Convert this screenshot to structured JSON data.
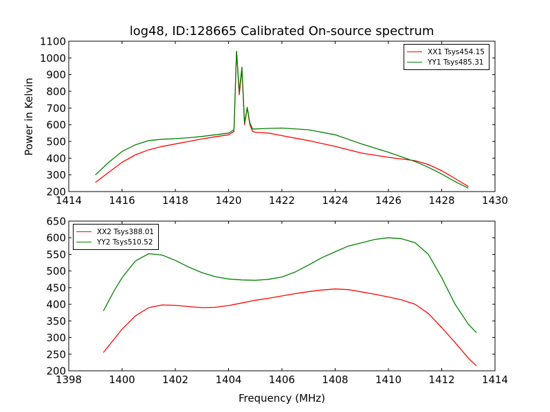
{
  "chart_data": [
    {
      "type": "line",
      "title": "log48, ID:128665 Calibrated On-source spectrum",
      "xlabel": "",
      "ylabel": "Power in Kelvin",
      "xlim": [
        1414,
        1430
      ],
      "ylim": [
        200,
        1100
      ],
      "xticks": [
        "1414",
        "1416",
        "1418",
        "1420",
        "1422",
        "1424",
        "1426",
        "1428",
        "1430"
      ],
      "yticks": [
        "200",
        "300",
        "400",
        "500",
        "600",
        "700",
        "800",
        "900",
        "1000",
        "1100"
      ],
      "legend_position": "top-right",
      "series": [
        {
          "name": "XX1 Tsys454.15",
          "color": "#ff0000",
          "x": [
            1415,
            1415.5,
            1416,
            1416.5,
            1417,
            1417.5,
            1418,
            1418.5,
            1419,
            1419.5,
            1420,
            1420.2,
            1420.3,
            1420.4,
            1420.5,
            1420.6,
            1420.7,
            1420.8,
            1420.9,
            1421.0,
            1421.5,
            1422,
            1423,
            1424,
            1425,
            1426,
            1427,
            1427.5,
            1428,
            1428.5,
            1429
          ],
          "y": [
            255,
            315,
            375,
            420,
            450,
            470,
            485,
            500,
            515,
            528,
            540,
            560,
            1040,
            780,
            930,
            600,
            700,
            600,
            560,
            555,
            550,
            535,
            505,
            470,
            430,
            405,
            385,
            362,
            325,
            278,
            230
          ]
        },
        {
          "name": "YY1 Tsys485.31",
          "color": "#008000",
          "x": [
            1415,
            1415.5,
            1416,
            1416.5,
            1417,
            1417.5,
            1418,
            1418.5,
            1419,
            1419.5,
            1420,
            1420.2,
            1420.3,
            1420.4,
            1420.5,
            1420.6,
            1420.7,
            1420.8,
            1420.9,
            1421.0,
            1421.5,
            1422,
            1423,
            1424,
            1425,
            1426,
            1427,
            1427.5,
            1428,
            1428.5,
            1429
          ],
          "y": [
            300,
            375,
            440,
            480,
            505,
            513,
            517,
            522,
            530,
            540,
            550,
            570,
            1040,
            800,
            945,
            610,
            705,
            610,
            575,
            575,
            578,
            580,
            570,
            540,
            485,
            435,
            380,
            345,
            305,
            260,
            220
          ]
        }
      ]
    },
    {
      "type": "line",
      "title": "",
      "xlabel": "Frequency (MHz)",
      "ylabel": "",
      "xlim": [
        1398,
        1414
      ],
      "ylim": [
        200,
        650
      ],
      "xticks": [
        "1398",
        "1400",
        "1402",
        "1404",
        "1406",
        "1408",
        "1410",
        "1412",
        "1414"
      ],
      "yticks": [
        "200",
        "250",
        "300",
        "350",
        "400",
        "450",
        "500",
        "550",
        "600",
        "650"
      ],
      "legend_position": "top-left",
      "series": [
        {
          "name": "XX2 Tsys388.01",
          "color": "#ff0000",
          "x": [
            1399.3,
            1399.7,
            1400,
            1400.5,
            1401,
            1401.5,
            1402,
            1402.5,
            1403,
            1403.5,
            1404,
            1404.5,
            1405,
            1405.5,
            1406,
            1406.5,
            1407,
            1407.5,
            1408,
            1408.5,
            1409,
            1409.5,
            1410,
            1410.5,
            1411,
            1411.5,
            1412,
            1412.5,
            1413,
            1413.3
          ],
          "y": [
            255,
            295,
            325,
            365,
            390,
            398,
            397,
            393,
            390,
            391,
            396,
            404,
            412,
            418,
            425,
            432,
            438,
            443,
            446,
            444,
            437,
            430,
            422,
            413,
            400,
            372,
            330,
            285,
            238,
            215
          ]
        },
        {
          "name": "YY2 Tsys510.52",
          "color": "#008000",
          "x": [
            1399.3,
            1399.7,
            1400,
            1400.5,
            1401,
            1401.5,
            1402,
            1402.5,
            1403,
            1403.5,
            1404,
            1404.5,
            1405,
            1405.5,
            1406,
            1406.5,
            1407,
            1407.5,
            1408,
            1408.5,
            1409,
            1409.5,
            1410,
            1410.5,
            1411,
            1411.5,
            1412,
            1412.5,
            1413,
            1413.3
          ],
          "y": [
            380,
            440,
            480,
            530,
            552,
            548,
            532,
            512,
            495,
            483,
            476,
            473,
            472,
            475,
            482,
            497,
            518,
            540,
            558,
            575,
            585,
            595,
            600,
            597,
            585,
            550,
            480,
            400,
            340,
            315
          ]
        }
      ]
    }
  ]
}
